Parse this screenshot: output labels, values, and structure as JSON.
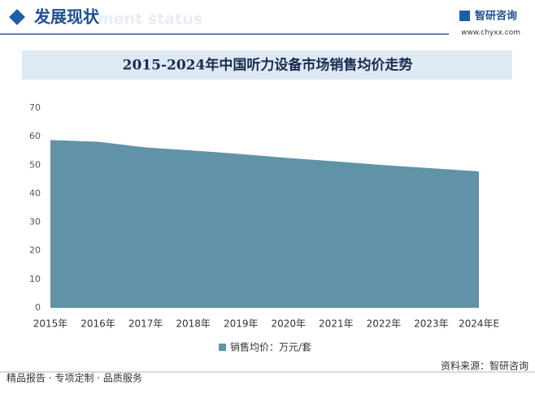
{
  "header": {
    "title": "发展现状",
    "ghost": "ment status"
  },
  "logo": {
    "name": "智研咨询",
    "url": "www.chyxx.com"
  },
  "chart_data": {
    "type": "area",
    "title": "2015-2024年中国听力设备市场销售均价走势",
    "categories": [
      "2015年",
      "2016年",
      "2017年",
      "2018年",
      "2019年",
      "2020年",
      "2021年",
      "2022年",
      "2023年",
      "2024年E"
    ],
    "series": [
      {
        "name": "销售均价：万元/套",
        "color": "#6093a8",
        "values": [
          58.8,
          58.2,
          56.2,
          55.1,
          53.9,
          52.5,
          51.3,
          50.0,
          48.9,
          47.8
        ]
      }
    ],
    "ylim": [
      0,
      70
    ],
    "yticks": [
      0,
      10,
      20,
      30,
      40,
      50,
      60,
      70
    ]
  },
  "source": "资料来源：智研咨询",
  "footer": "精品报告 · 专项定制 · 品质服务"
}
